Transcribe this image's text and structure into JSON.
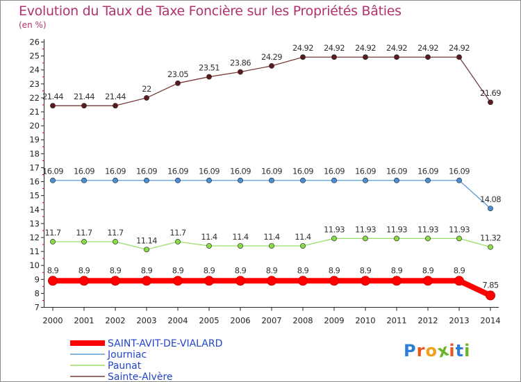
{
  "title": "Evolution du Taux de Taxe Foncière sur les Propriétés Bâties",
  "unit_label": "(en %)",
  "logo": {
    "text": "Proxiti",
    "letters": [
      "P",
      "r",
      "o",
      "x",
      "i",
      "t",
      "i"
    ],
    "colors": [
      "#2b7fd8",
      "#e8551e",
      "#f0a019",
      "#6ab42a",
      "#e8551e",
      "#2b7fd8",
      "#6ab42a"
    ]
  },
  "chart_data": {
    "type": "line",
    "title": "Evolution du Taux de Taxe Foncière sur les Propriétés Bâties",
    "ylabel": "(en %)",
    "xlabel": "",
    "ylim": [
      7,
      26
    ],
    "yticks": [
      7,
      8,
      9,
      10,
      11,
      12,
      13,
      14,
      15,
      16,
      17,
      18,
      19,
      20,
      21,
      22,
      23,
      24,
      25,
      26
    ],
    "grid": false,
    "legend_position": "bottom-left",
    "x": [
      "2000",
      "2001",
      "2002",
      "2003",
      "2004",
      "2005",
      "2006",
      "2007",
      "2008",
      "2009",
      "2010",
      "2011",
      "2012",
      "2013",
      "2014"
    ],
    "series": [
      {
        "name": "SAINT-AVIT-DE-VIALARD",
        "color": "#ff0000",
        "bold": true,
        "values": [
          8.9,
          8.9,
          8.9,
          8.9,
          8.9,
          8.9,
          8.9,
          8.9,
          8.9,
          8.9,
          8.9,
          8.9,
          8.9,
          8.9,
          7.85
        ],
        "labels": [
          "8.9",
          "8.9",
          "8.9",
          "8.9",
          "8.9",
          "8.9",
          "8.9",
          "8.9",
          "8.9",
          "8.9",
          "8.9",
          "8.9",
          "8.9",
          "8.9",
          "7.85"
        ]
      },
      {
        "name": "Journiac",
        "color": "#5a9bd4",
        "marker": "#4a8fd8",
        "values": [
          16.09,
          16.09,
          16.09,
          16.09,
          16.09,
          16.09,
          16.09,
          16.09,
          16.09,
          16.09,
          16.09,
          16.09,
          16.09,
          16.09,
          14.08
        ],
        "labels": [
          "16.09",
          "16.09",
          "16.09",
          "16.09",
          "16.09",
          "16.09",
          "16.09",
          "16.09",
          "16.09",
          "16.09",
          "16.09",
          "16.09",
          "16.09",
          "16.09",
          "14.08"
        ]
      },
      {
        "name": "Paunat",
        "color": "#99dd66",
        "marker": "#88dd44",
        "values": [
          11.7,
          11.7,
          11.7,
          11.14,
          11.7,
          11.4,
          11.4,
          11.4,
          11.4,
          11.93,
          11.93,
          11.93,
          11.93,
          11.93,
          11.32
        ],
        "labels": [
          "11.7",
          "11.7",
          "11.7",
          "11.14",
          "11.7",
          "11.4",
          "11.4",
          "11.4",
          "11.4",
          "11.93",
          "11.93",
          "11.93",
          "11.93",
          "11.93",
          "11.32"
        ]
      },
      {
        "name": "Sainte-Alvère",
        "color": "#7a3a3a",
        "marker": "#5a1a1e",
        "values": [
          21.44,
          21.44,
          21.44,
          22,
          23.05,
          23.51,
          23.86,
          24.29,
          24.92,
          24.92,
          24.92,
          24.92,
          24.92,
          24.92,
          21.69
        ],
        "labels": [
          "21.44",
          "21.44",
          "21.44",
          "22",
          "23.05",
          "23.51",
          "23.86",
          "24.29",
          "24.92",
          "24.92",
          "24.92",
          "24.92",
          "24.92",
          "24.92",
          "21.69"
        ]
      }
    ]
  }
}
